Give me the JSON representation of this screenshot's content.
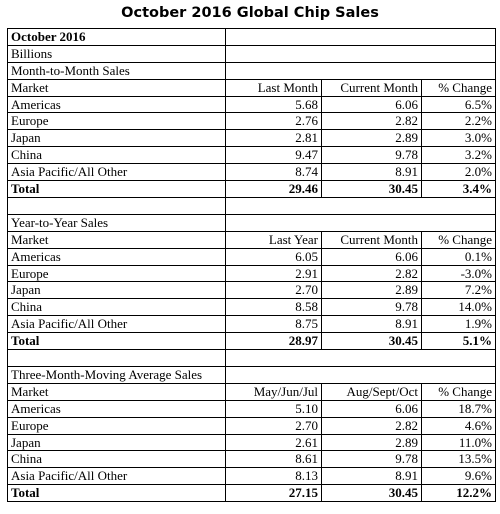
{
  "title": "October 2016 Global Chip Sales",
  "period": "October 2016",
  "units": "Billions",
  "sections": [
    {
      "heading": "Month-to-Month Sales",
      "columns": [
        "Market",
        "Last Month",
        "Current Month",
        "% Change"
      ],
      "rows": [
        [
          "Americas",
          "5.68",
          "6.06",
          "6.5%"
        ],
        [
          "Europe",
          "2.76",
          "2.82",
          "2.2%"
        ],
        [
          "Japan",
          "2.81",
          "2.89",
          "3.0%"
        ],
        [
          "China",
          "9.47",
          "9.78",
          "3.2%"
        ],
        [
          "Asia Pacific/All Other",
          "8.74",
          "8.91",
          "2.0%"
        ]
      ],
      "total": [
        "Total",
        "29.46",
        "30.45",
        "3.4%"
      ]
    },
    {
      "heading": "Year-to-Year Sales",
      "columns": [
        "Market",
        "Last Year",
        "Current Month",
        "% Change"
      ],
      "rows": [
        [
          "Americas",
          "6.05",
          "6.06",
          "0.1%"
        ],
        [
          "Europe",
          "2.91",
          "2.82",
          "-3.0%"
        ],
        [
          "Japan",
          "2.70",
          "2.89",
          "7.2%"
        ],
        [
          "China",
          "8.58",
          "9.78",
          "14.0%"
        ],
        [
          "Asia Pacific/All Other",
          "8.75",
          "8.91",
          "1.9%"
        ]
      ],
      "total": [
        "Total",
        "28.97",
        "30.45",
        "5.1%"
      ]
    },
    {
      "heading": "Three-Month-Moving Average Sales",
      "columns": [
        "Market",
        "May/Jun/Jul",
        "Aug/Sept/Oct",
        "% Change"
      ],
      "rows": [
        [
          "Americas",
          "5.10",
          "6.06",
          "18.7%"
        ],
        [
          "Europe",
          "2.70",
          "2.82",
          "4.6%"
        ],
        [
          "Japan",
          "2.61",
          "2.89",
          "11.0%"
        ],
        [
          "China",
          "8.61",
          "9.78",
          "13.5%"
        ],
        [
          "Asia Pacific/All Other",
          "8.13",
          "8.91",
          "9.6%"
        ]
      ],
      "total": [
        "Total",
        "27.15",
        "30.45",
        "12.2%"
      ]
    }
  ]
}
